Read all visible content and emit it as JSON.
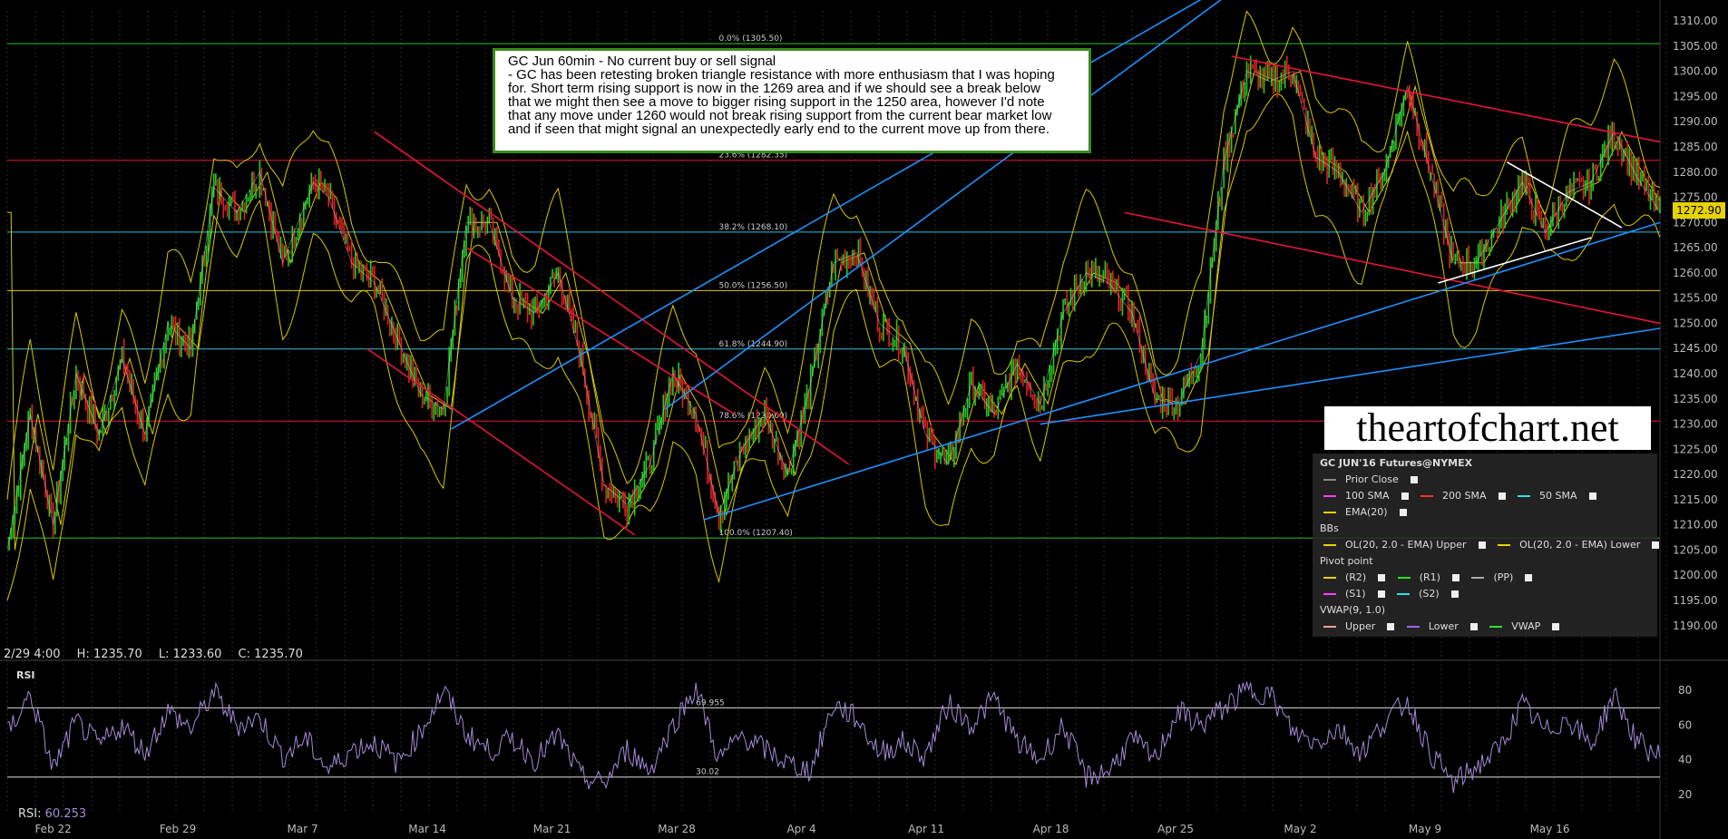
{
  "chart_data": {
    "type": "line",
    "instrument": "GC JUN'16 Futures@NYMEX",
    "price_axis": {
      "ticks": [
        "1310.00",
        "1305.00",
        "1300.00",
        "1295.00",
        "1290.00",
        "1285.00",
        "1280.00",
        "1275.00",
        "1270.00",
        "1265.00",
        "1260.00",
        "1255.00",
        "1250.00",
        "1245.00",
        "1240.00",
        "1235.00",
        "1230.00",
        "1225.00",
        "1220.00",
        "1215.00",
        "1210.00",
        "1205.00",
        "1200.00",
        "1195.00",
        "1190.00"
      ],
      "ylim": [
        1186,
        1312
      ]
    },
    "x_labels": [
      "Feb 22",
      "Feb 29",
      "Mar 7",
      "Mar 14",
      "Mar 21",
      "Mar 28",
      "Apr 4",
      "Apr 11",
      "Apr 18",
      "Apr 25",
      "May 2",
      "May 9",
      "May 16"
    ],
    "last_price": "1272.90",
    "fib_levels": [
      {
        "label": "0.0% (1305.50)",
        "value": 1305.5
      },
      {
        "label": "23.6% (1282.35)",
        "value": 1282.35
      },
      {
        "label": "38.2% (1268.10)",
        "value": 1268.1
      },
      {
        "label": "50.0% (1256.50)",
        "value": 1256.5
      },
      {
        "label": "61.8% (1244.90)",
        "value": 1244.9
      },
      {
        "label": "78.6% (1230.60)",
        "value": 1230.6
      },
      {
        "label": "100.0% (1207.40)",
        "value": 1207.4
      }
    ],
    "price_path": [
      [
        0,
        1205
      ],
      [
        3,
        1232
      ],
      [
        6,
        1210
      ],
      [
        9,
        1240
      ],
      [
        12,
        1228
      ],
      [
        15,
        1243
      ],
      [
        18,
        1228
      ],
      [
        21,
        1250
      ],
      [
        24,
        1245
      ],
      [
        27,
        1277
      ],
      [
        30,
        1272
      ],
      [
        33,
        1280
      ],
      [
        36,
        1262
      ],
      [
        40,
        1278
      ],
      [
        42,
        1275
      ],
      [
        45,
        1262
      ],
      [
        48,
        1258
      ],
      [
        51,
        1247
      ],
      [
        54,
        1236
      ],
      [
        57,
        1233
      ],
      [
        60,
        1270
      ],
      [
        63,
        1270
      ],
      [
        66,
        1255
      ],
      [
        69,
        1252
      ],
      [
        72,
        1260
      ],
      [
        75,
        1243
      ],
      [
        78,
        1218
      ],
      [
        81,
        1214
      ],
      [
        84,
        1222
      ],
      [
        87,
        1240
      ],
      [
        90,
        1232
      ],
      [
        93,
        1212
      ],
      [
        96,
        1225
      ],
      [
        99,
        1232
      ],
      [
        102,
        1220
      ],
      [
        105,
        1238
      ],
      [
        108,
        1262
      ],
      [
        111,
        1264
      ],
      [
        114,
        1250
      ],
      [
        117,
        1246
      ],
      [
        120,
        1228
      ],
      [
        123,
        1222
      ],
      [
        126,
        1238
      ],
      [
        129,
        1232
      ],
      [
        132,
        1242
      ],
      [
        135,
        1234
      ],
      [
        138,
        1252
      ],
      [
        141,
        1260
      ],
      [
        144,
        1258
      ],
      [
        147,
        1252
      ],
      [
        150,
        1235
      ],
      [
        153,
        1234
      ],
      [
        156,
        1244
      ],
      [
        159,
        1282
      ],
      [
        162,
        1300
      ],
      [
        165,
        1298
      ],
      [
        168,
        1300
      ],
      [
        171,
        1283
      ],
      [
        174,
        1280
      ],
      [
        177,
        1272
      ],
      [
        180,
        1280
      ],
      [
        183,
        1297
      ],
      [
        186,
        1280
      ],
      [
        189,
        1262
      ],
      [
        192,
        1262
      ],
      [
        195,
        1270
      ],
      [
        198,
        1278
      ],
      [
        201,
        1268
      ],
      [
        204,
        1276
      ],
      [
        207,
        1278
      ],
      [
        210,
        1288
      ],
      [
        213,
        1279
      ],
      [
        216,
        1272
      ]
    ],
    "rsi": {
      "label": "RSI",
      "value": "60.253",
      "ticks": [
        "80",
        "60",
        "40",
        "20"
      ],
      "ylim": [
        10,
        90
      ],
      "levels": [
        {
          "label": "69.955",
          "value": 69.955
        },
        {
          "label": "30.02",
          "value": 30.02
        }
      ],
      "series": [
        [
          0,
          55
        ],
        [
          3,
          78
        ],
        [
          6,
          35
        ],
        [
          9,
          62
        ],
        [
          12,
          48
        ],
        [
          15,
          60
        ],
        [
          18,
          44
        ],
        [
          21,
          68
        ],
        [
          24,
          58
        ],
        [
          27,
          79
        ],
        [
          30,
          60
        ],
        [
          33,
          64
        ],
        [
          36,
          42
        ],
        [
          39,
          52
        ],
        [
          42,
          34
        ],
        [
          45,
          46
        ],
        [
          48,
          50
        ],
        [
          51,
          38
        ],
        [
          54,
          56
        ],
        [
          57,
          80
        ],
        [
          60,
          55
        ],
        [
          63,
          45
        ],
        [
          66,
          52
        ],
        [
          69,
          40
        ],
        [
          72,
          54
        ],
        [
          75,
          30
        ],
        [
          78,
          26
        ],
        [
          81,
          46
        ],
        [
          84,
          34
        ],
        [
          87,
          60
        ],
        [
          90,
          82
        ],
        [
          93,
          40
        ],
        [
          96,
          54
        ],
        [
          99,
          46
        ],
        [
          102,
          38
        ],
        [
          105,
          34
        ],
        [
          108,
          72
        ],
        [
          111,
          64
        ],
        [
          114,
          44
        ],
        [
          117,
          50
        ],
        [
          120,
          42
        ],
        [
          123,
          72
        ],
        [
          126,
          60
        ],
        [
          129,
          76
        ],
        [
          132,
          50
        ],
        [
          135,
          40
        ],
        [
          138,
          60
        ],
        [
          141,
          30
        ],
        [
          144,
          34
        ],
        [
          147,
          52
        ],
        [
          150,
          40
        ],
        [
          153,
          68
        ],
        [
          156,
          60
        ],
        [
          159,
          70
        ],
        [
          162,
          80
        ],
        [
          165,
          78
        ],
        [
          168,
          56
        ],
        [
          171,
          50
        ],
        [
          174,
          58
        ],
        [
          177,
          44
        ],
        [
          180,
          62
        ],
        [
          183,
          74
        ],
        [
          186,
          44
        ],
        [
          189,
          26
        ],
        [
          192,
          36
        ],
        [
          195,
          46
        ],
        [
          198,
          72
        ],
        [
          201,
          56
        ],
        [
          204,
          64
        ],
        [
          207,
          48
        ],
        [
          210,
          78
        ],
        [
          213,
          50
        ],
        [
          216,
          42
        ]
      ]
    },
    "colors": {
      "support": "#1e90ff",
      "resistance": "#e8133a",
      "bbands": "#d6c800",
      "up": "#22cc22",
      "down": "#dd2222",
      "rsi": "#a58ad6",
      "white_lines": "#ffffff"
    }
  },
  "note": {
    "lines": [
      "GC Jun 60min - No current buy or sell signal",
      "- GC has been retesting broken triangle resistance with more enthusiasm that I was hoping",
      "for. Short term rising support is now in the 1269 area and if we should see a break below",
      "that we might then see a move to bigger rising support in the 1250 area, however I'd note",
      "that any move under 1260 would not break rising support from the current bear market low",
      "and if seen that might signal an unexpectedly early end to the current move up from there."
    ]
  },
  "brand": "theartofchart.net",
  "legend": {
    "title": "GC JUN'16 Futures@NYMEX",
    "prior_close": "Prior Close",
    "sma100": "100 SMA",
    "sma200": "200 SMA",
    "sma50": "50 SMA",
    "ema20": "EMA(20)",
    "bbs": "BBs",
    "bb_upper": "OL(20, 2.0 - EMA) Upper",
    "bb_lower": "OL(20, 2.0 - EMA) Lower",
    "pivot": "Pivot point",
    "r2": "(R2)",
    "r1": "(R1)",
    "pp": "(PP)",
    "s1": "(S1)",
    "s2": "(S2)",
    "vwap_title": "VWAP(9, 1.0)",
    "vwap_upper": "Upper",
    "vwap_lower": "Lower",
    "vwap": "VWAP"
  },
  "info": {
    "date": "2/29 4:00",
    "high": "H: 1235.70",
    "low": "L: 1233.60",
    "close": "C: 1235.70"
  }
}
